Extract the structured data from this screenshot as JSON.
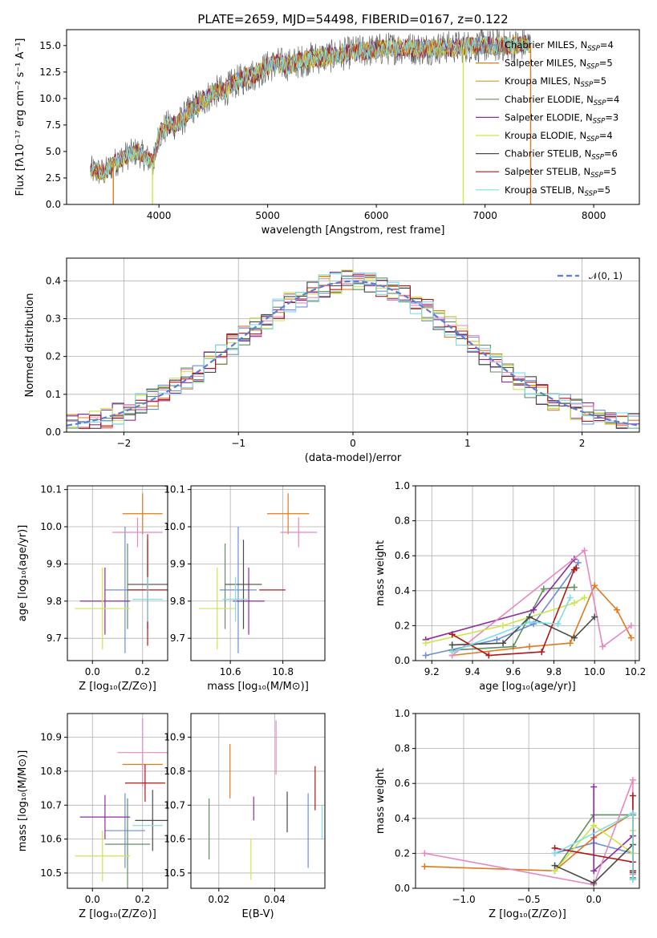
{
  "figure": {
    "title": "PLATE=2659, MJD=54498, FIBERID=0167, z=0.122"
  },
  "colors": {
    "blue": "#6a8fd8",
    "orange": "#e07a20",
    "green": "#5f8f5f",
    "purple": "#8e2ca0",
    "pink": "#e887bf",
    "yellow": "#cde64a",
    "dark": "#4a4a4a",
    "red": "#b01818",
    "cyan": "#7fdde6"
  },
  "chart_data": [
    {
      "id": "spectrum",
      "type": "line",
      "title": "PLATE=2659, MJD=54498, FIBERID=0167, z=0.122",
      "xlabel": "wavelength [Angstrom, rest frame]",
      "ylabel": "Flux [fλ10⁻¹⁷ erg cm⁻² s⁻¹ A⁻¹]",
      "xlim": [
        3150,
        8420
      ],
      "ylim": [
        0,
        16.5
      ],
      "xticks": [
        4000,
        5000,
        6000,
        7000,
        8000
      ],
      "yticks": [
        0.0,
        2.5,
        5.0,
        7.5,
        10.0,
        12.5,
        15.0
      ],
      "grid": false,
      "legend": "top-right",
      "data_range_x": [
        3370,
        7420
      ],
      "envelope": {
        "x": [
          3370,
          3500,
          3600,
          3700,
          3800,
          3900,
          3950,
          4000,
          4100,
          4200,
          4300,
          4400,
          4500,
          4600,
          4700,
          4800,
          4900,
          5000,
          5100,
          5200,
          5400,
          5600,
          5800,
          6000,
          6200,
          6400,
          6600,
          6800,
          7000,
          7200,
          7420
        ],
        "y": [
          3.2,
          3.0,
          4.0,
          4.6,
          5.0,
          4.3,
          3.9,
          6.7,
          7.5,
          7.8,
          9.0,
          9.7,
          10.6,
          10.7,
          11.5,
          12.0,
          12.4,
          13.0,
          13.3,
          13.2,
          13.8,
          14.0,
          14.4,
          14.6,
          14.8,
          14.7,
          14.8,
          14.9,
          15.0,
          15.0,
          15.1
        ]
      },
      "spikes": [
        {
          "x": 3580,
          "series": "Salpeter MILES"
        },
        {
          "x": 3940,
          "series": "Kroupa ELODIE"
        },
        {
          "x": 6800,
          "series": "Kroupa ELODIE"
        },
        {
          "x": 7420,
          "series": "Salpeter MILES"
        }
      ],
      "series": [
        {
          "name": "Chabrier MILES, N_SSP=4",
          "label_main": "Chabrier MILES, N",
          "label_sub": "SSP",
          "label_end": "=4",
          "color": "#6a8fd8"
        },
        {
          "name": "Salpeter MILES, N_SSP=5",
          "label_main": "Salpeter MILES, N",
          "label_sub": "SSP",
          "label_end": "=5",
          "color": "#e07a20"
        },
        {
          "name": "Kroupa MILES, N_SSP=5",
          "label_main": "Kroupa MILES, N",
          "label_sub": "SSP",
          "label_end": "=5",
          "color": "#c79a3a"
        },
        {
          "name": "Chabrier ELODIE, N_SSP=4",
          "label_main": "Chabrier ELODIE, N",
          "label_sub": "SSP",
          "label_end": "=4",
          "color": "#5f8f5f"
        },
        {
          "name": "Salpeter ELODIE, N_SSP=3",
          "label_main": "Salpeter ELODIE, N",
          "label_sub": "SSP",
          "label_end": "=3",
          "color": "#8e2ca0"
        },
        {
          "name": "Kroupa ELODIE, N_SSP=4",
          "label_main": "Kroupa ELODIE, N",
          "label_sub": "SSP",
          "label_end": "=4",
          "color": "#cde64a"
        },
        {
          "name": "Chabrier STELIB, N_SSP=6",
          "label_main": "Chabrier STELIB, N",
          "label_sub": "SSP",
          "label_end": "=6",
          "color": "#4a4a4a"
        },
        {
          "name": "Salpeter STELIB, N_SSP=5",
          "label_main": "Salpeter STELIB, N",
          "label_sub": "SSP",
          "label_end": "=5",
          "color": "#b01818"
        },
        {
          "name": "Kroupa STELIB, N_SSP=5",
          "label_main": "Kroupa STELIB, N",
          "label_sub": "SSP",
          "label_end": "=5",
          "color": "#7fdde6"
        }
      ]
    },
    {
      "id": "residuals",
      "type": "line",
      "xlabel": "(data-model)/error",
      "ylabel": "Normed distribution",
      "xlim": [
        -2.5,
        2.5
      ],
      "ylim": [
        0,
        0.46
      ],
      "xticks": [
        -2,
        -1,
        0,
        1,
        2
      ],
      "yticks": [
        0.0,
        0.1,
        0.2,
        0.3,
        0.4
      ],
      "grid": true,
      "legend": "top-right",
      "legend_label": "𝒩(0, 1)",
      "normal_curve": {
        "mean": 0,
        "sigma": 1,
        "color": "#5a7fd6"
      },
      "bin_width": 0.1,
      "bin_start": -2.5,
      "histograms_note": "one step histogram per fit, colored as in spectrum legend"
    },
    {
      "id": "age-vs-Z",
      "type": "scatter",
      "xlabel": "Z [log₁₀(Z/Z⊙)]",
      "ylabel": "age  [log₁₀(age/yr)]",
      "xlim": [
        -0.1,
        0.3
      ],
      "ylim": [
        9.64,
        10.11
      ],
      "xticks": [
        0.0,
        0.2
      ],
      "yticks": [
        9.7,
        9.8,
        9.9,
        10.0,
        10.1
      ],
      "grid": true,
      "points": [
        {
          "color": "#6a8fd8",
          "x": 0.13,
          "y": 9.83,
          "xerr": 0.08,
          "yerr": 0.17
        },
        {
          "color": "#e07a20",
          "x": 0.2,
          "y": 10.035,
          "xerr": 0.08,
          "yerr": 0.055
        },
        {
          "color": "#5f8f5f",
          "x": 0.14,
          "y": 9.84,
          "xerr": 0.0,
          "yerr": 0.115
        },
        {
          "color": "#8e2ca0",
          "x": 0.05,
          "y": 9.8,
          "xerr": 0.1,
          "yerr": 0.09
        },
        {
          "color": "#e887bf",
          "x": 0.18,
          "y": 9.985,
          "xerr": 0.1,
          "yerr": 0.04
        },
        {
          "color": "#cde64a",
          "x": 0.04,
          "y": 9.78,
          "xerr": 0.11,
          "yerr": 0.11
        },
        {
          "color": "#4a4a4a",
          "x": 0.22,
          "y": 9.845,
          "xerr": 0.08,
          "yerr": 0.12
        },
        {
          "color": "#b01818",
          "x": 0.22,
          "y": 9.83,
          "xerr": 0.08,
          "yerr": 0.15
        },
        {
          "color": "#7fdde6",
          "x": 0.22,
          "y": 9.805,
          "xerr": 0.06,
          "yerr": 0.06
        }
      ]
    },
    {
      "id": "age-vs-mass",
      "type": "scatter",
      "xlabel": "mass [log₁₀(M/M⊙)]",
      "ylabel": "",
      "xlim": [
        10.45,
        10.96
      ],
      "ylim": [
        9.64,
        10.11
      ],
      "xticks": [
        10.6,
        10.8
      ],
      "yticks": [
        9.7,
        9.8,
        9.9,
        10.0,
        10.1
      ],
      "grid": true,
      "points": [
        {
          "color": "#6a8fd8",
          "x": 10.63,
          "y": 9.83,
          "xerr": 0.07,
          "yerr": 0.17
        },
        {
          "color": "#e07a20",
          "x": 10.82,
          "y": 10.035,
          "xerr": 0.08,
          "yerr": 0.055
        },
        {
          "color": "#5f8f5f",
          "x": 10.58,
          "y": 9.84,
          "xerr": 0.0,
          "yerr": 0.115
        },
        {
          "color": "#8e2ca0",
          "x": 10.67,
          "y": 9.8,
          "xerr": 0.06,
          "yerr": 0.09
        },
        {
          "color": "#e887bf",
          "x": 10.86,
          "y": 9.985,
          "xerr": 0.07,
          "yerr": 0.04
        },
        {
          "color": "#cde64a",
          "x": 10.55,
          "y": 9.78,
          "xerr": 0.07,
          "yerr": 0.11
        },
        {
          "color": "#4a4a4a",
          "x": 10.65,
          "y": 9.845,
          "xerr": 0.07,
          "yerr": 0.12
        },
        {
          "color": "#b01818",
          "x": 10.76,
          "y": 9.83,
          "xerr": 0.05,
          "yerr": 0.0
        },
        {
          "color": "#7fdde6",
          "x": 10.62,
          "y": 9.805,
          "xerr": 0.05,
          "yerr": 0.06
        }
      ]
    },
    {
      "id": "mass-weight-vs-age",
      "type": "line",
      "xlabel": "age  [log₁₀(age/yr)]",
      "ylabel": "mass weight",
      "xlim": [
        9.12,
        10.22
      ],
      "ylim": [
        0,
        1.0
      ],
      "xticks": [
        9.2,
        9.4,
        9.6,
        9.8,
        10.0,
        10.2
      ],
      "yticks": [
        0.0,
        0.2,
        0.4,
        0.6,
        0.8,
        1.0
      ],
      "grid": true,
      "series": [
        {
          "color": "#6a8fd8",
          "x": [
            9.17,
            9.52,
            9.7,
            9.92
          ],
          "y": [
            0.03,
            0.12,
            0.21,
            0.56
          ]
        },
        {
          "color": "#e07a20",
          "x": [
            9.3,
            9.68,
            9.88,
            10.0,
            10.11,
            10.18
          ],
          "y": [
            0.03,
            0.08,
            0.1,
            0.43,
            0.29,
            0.13
          ]
        },
        {
          "color": "#5f8f5f",
          "x": [
            9.3,
            9.6,
            9.75,
            9.9
          ],
          "y": [
            0.06,
            0.08,
            0.41,
            0.42
          ]
        },
        {
          "color": "#8e2ca0",
          "x": [
            9.17,
            9.7,
            9.9
          ],
          "y": [
            0.12,
            0.29,
            0.58
          ]
        },
        {
          "color": "#e887bf",
          "x": [
            9.3,
            9.95,
            10.04,
            10.18
          ],
          "y": [
            0.03,
            0.63,
            0.08,
            0.2
          ]
        },
        {
          "color": "#cde64a",
          "x": [
            9.17,
            9.55,
            9.9,
            9.95
          ],
          "y": [
            0.1,
            0.2,
            0.33,
            0.36
          ]
        },
        {
          "color": "#4a4a4a",
          "x": [
            9.3,
            9.55,
            9.68,
            9.9,
            10.0
          ],
          "y": [
            0.09,
            0.1,
            0.25,
            0.13,
            0.25
          ]
        },
        {
          "color": "#b01818",
          "x": [
            9.3,
            9.48,
            9.74,
            9.9,
            9.91
          ],
          "y": [
            0.15,
            0.03,
            0.05,
            0.52,
            0.53
          ]
        },
        {
          "color": "#7fdde6",
          "x": [
            9.3,
            9.68,
            9.82,
            9.88
          ],
          "y": [
            0.05,
            0.22,
            0.21,
            0.36
          ]
        }
      ]
    },
    {
      "id": "mass-vs-Z",
      "type": "scatter",
      "xlabel": "Z [log₁₀(Z/Z⊙)]",
      "ylabel": "mass [log₁₀(M/M⊙)]",
      "xlim": [
        -0.1,
        0.3
      ],
      "ylim": [
        10.455,
        10.97
      ],
      "xticks": [
        0.0,
        0.2
      ],
      "yticks": [
        10.5,
        10.6,
        10.7,
        10.8,
        10.9
      ],
      "grid": true,
      "points": [
        {
          "color": "#6a8fd8",
          "x": 0.13,
          "y": 10.625,
          "xerr": 0.08,
          "yerr": 0.11
        },
        {
          "color": "#e07a20",
          "x": 0.2,
          "y": 10.82,
          "xerr": 0.08,
          "yerr": 0.0
        },
        {
          "color": "#5f8f5f",
          "x": 0.14,
          "y": 10.585,
          "xerr": 0.09,
          "yerr": 0.135
        },
        {
          "color": "#8e2ca0",
          "x": 0.05,
          "y": 10.665,
          "xerr": 0.1,
          "yerr": 0.065
        },
        {
          "color": "#e887bf",
          "x": 0.2,
          "y": 10.855,
          "xerr": 0.1,
          "yerr": 0.1
        },
        {
          "color": "#cde64a",
          "x": 0.04,
          "y": 10.55,
          "xerr": 0.11,
          "yerr": 0.075
        },
        {
          "color": "#4a4a4a",
          "x": 0.24,
          "y": 10.655,
          "xerr": 0.07,
          "yerr": 0.09
        },
        {
          "color": "#b01818",
          "x": 0.21,
          "y": 10.765,
          "xerr": 0.08,
          "yerr": 0.055
        },
        {
          "color": "#7fdde6",
          "x": 0.22,
          "y": 10.64,
          "xerr": 0.06,
          "yerr": 0.0
        }
      ]
    },
    {
      "id": "mass-vs-ebv",
      "type": "scatter",
      "xlabel": "E(B-V)",
      "ylabel": "",
      "xlim": [
        0.01,
        0.058
      ],
      "ylim": [
        10.455,
        10.97
      ],
      "xticks": [
        0.02,
        0.04
      ],
      "yticks": [
        10.5,
        10.6,
        10.7,
        10.8,
        10.9
      ],
      "grid": true,
      "points": [
        {
          "color": "#6a8fd8",
          "x": 0.052,
          "y": 10.625,
          "xerr": 0.0,
          "yerr": 0.11
        },
        {
          "color": "#e07a20",
          "x": 0.024,
          "y": 10.8,
          "xerr": 0.0,
          "yerr": 0.08
        },
        {
          "color": "#5f8f5f",
          "x": 0.0165,
          "y": 10.63,
          "xerr": 0.0,
          "yerr": 0.09
        },
        {
          "color": "#8e2ca0",
          "x": 0.0325,
          "y": 10.69,
          "xerr": 0.0,
          "yerr": 0.035
        },
        {
          "color": "#e887bf",
          "x": 0.0405,
          "y": 10.87,
          "xerr": 0.0,
          "yerr": 0.08
        },
        {
          "color": "#cde64a",
          "x": 0.0315,
          "y": 10.54,
          "xerr": 0.0,
          "yerr": 0.06
        },
        {
          "color": "#4a4a4a",
          "x": 0.0445,
          "y": 10.68,
          "xerr": 0.0,
          "yerr": 0.06
        },
        {
          "color": "#b01818",
          "x": 0.0545,
          "y": 10.75,
          "xerr": 0.0,
          "yerr": 0.065
        },
        {
          "color": "#7fdde6",
          "x": 0.057,
          "y": 10.65,
          "xerr": 0.0,
          "yerr": 0.05
        }
      ]
    },
    {
      "id": "mass-weight-vs-Z",
      "type": "line",
      "xlabel": "Z [log₁₀(Z/Z⊙)]",
      "ylabel": "mass weight",
      "xlim": [
        -1.37,
        0.35
      ],
      "ylim": [
        0,
        1.0
      ],
      "xticks": [
        -1.0,
        -0.5,
        0.0
      ],
      "yticks": [
        0.0,
        0.2,
        0.4,
        0.6,
        0.8,
        1.0
      ],
      "grid": true,
      "series": [
        {
          "color": "#6a8fd8",
          "x": [
            -0.3,
            0.0,
            0.3,
            0.3
          ],
          "y": [
            0.2,
            0.26,
            0.2,
            0.05
          ]
        },
        {
          "color": "#e07a20",
          "x": [
            -1.3,
            -0.3,
            0.0,
            0.3,
            0.3
          ],
          "y": [
            0.125,
            0.1,
            0.29,
            0.43,
            0.1
          ]
        },
        {
          "color": "#5f8f5f",
          "x": [
            -0.3,
            0.0,
            0.3,
            0.3
          ],
          "y": [
            0.1,
            0.42,
            0.42,
            0.06
          ]
        },
        {
          "color": "#8e2ca0",
          "x": [
            0.0,
            0.0,
            0.3
          ],
          "y": [
            0.58,
            0.1,
            0.3
          ]
        },
        {
          "color": "#e887bf",
          "x": [
            -1.3,
            0.0,
            0.3,
            0.3
          ],
          "y": [
            0.2,
            0.02,
            0.62,
            0.08
          ]
        },
        {
          "color": "#cde64a",
          "x": [
            -0.3,
            0.0,
            0.3,
            0.3
          ],
          "y": [
            0.1,
            0.36,
            0.2,
            0.33
          ]
        },
        {
          "color": "#4a4a4a",
          "x": [
            -0.3,
            0.0,
            0.3,
            0.3
          ],
          "y": [
            0.13,
            0.03,
            0.25,
            0.09
          ]
        },
        {
          "color": "#b01818",
          "x": [
            -0.3,
            0.3,
            0.3,
            0.3
          ],
          "y": [
            0.23,
            0.15,
            0.53,
            0.1
          ]
        },
        {
          "color": "#7fdde6",
          "x": [
            -0.3,
            0.3,
            0.3
          ],
          "y": [
            0.2,
            0.43,
            0.05
          ]
        }
      ]
    }
  ]
}
